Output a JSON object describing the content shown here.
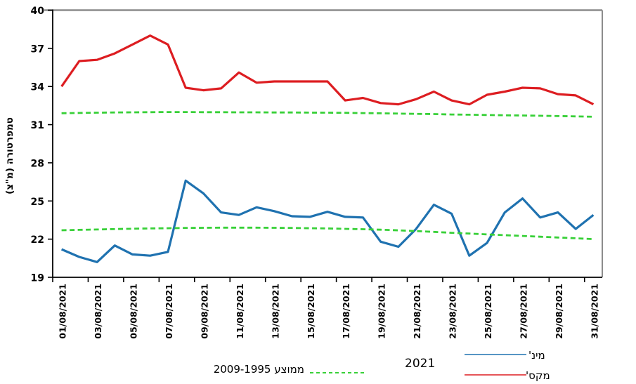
{
  "chart_data": {
    "type": "line",
    "title": "",
    "xlabel": "",
    "ylabel": "טמפרטורה (מ\"צ)",
    "ylim": [
      19,
      40
    ],
    "y_ticks": [
      19,
      22,
      25,
      28,
      31,
      34,
      37,
      40
    ],
    "n_points": 31,
    "grid": false,
    "x_tick_labels": [
      "01/08/2021",
      "03/08/2021",
      "05/08/2021",
      "07/08/2021",
      "09/08/2021",
      "11/08/2021",
      "13/08/2021",
      "15/08/2021",
      "17/08/2021",
      "19/08/2021",
      "21/08/2021",
      "23/08/2021",
      "25/08/2021",
      "27/08/2021",
      "29/08/2021",
      "31/08/2021"
    ],
    "series": [
      {
        "id": "max-2021",
        "name": "מקס' 2021",
        "color": "#dd1d21",
        "style": "solid",
        "values": [
          34.0,
          36.0,
          36.1,
          36.6,
          37.3,
          38.0,
          37.3,
          33.9,
          33.7,
          33.85,
          35.1,
          34.3,
          34.4,
          34.4,
          34.4,
          34.4,
          32.9,
          33.1,
          32.7,
          32.6,
          33.0,
          33.6,
          32.9,
          32.6,
          33.35,
          33.6,
          33.9,
          33.85,
          33.4,
          33.3,
          32.6
        ]
      },
      {
        "id": "min-2021",
        "name": "מינ' 2021",
        "color": "#1f72b0",
        "style": "solid",
        "values": [
          21.2,
          20.6,
          20.2,
          21.5,
          20.8,
          20.7,
          21.0,
          26.6,
          25.6,
          24.1,
          23.9,
          24.5,
          24.2,
          23.8,
          23.75,
          24.15,
          23.75,
          23.7,
          21.8,
          21.4,
          22.8,
          24.7,
          24.0,
          20.7,
          21.7,
          24.1,
          25.2,
          23.7,
          24.1,
          22.8,
          23.9
        ]
      },
      {
        "id": "avg-max-1995-2009",
        "name": "ממוצע מקס' 1995-2009",
        "color": "#38d038",
        "style": "dashed",
        "values": [
          31.9,
          31.92,
          31.94,
          31.96,
          31.97,
          31.98,
          31.99,
          31.99,
          31.98,
          31.98,
          31.97,
          31.97,
          31.96,
          31.96,
          31.95,
          31.94,
          31.93,
          31.91,
          31.89,
          31.87,
          31.85,
          31.83,
          31.8,
          31.78,
          31.76,
          31.74,
          31.72,
          31.7,
          31.68,
          31.65,
          31.62
        ]
      },
      {
        "id": "avg-min-1995-2009",
        "name": "ממוצע מינ' 1995-2009",
        "color": "#38d038",
        "style": "dashed",
        "values": [
          22.7,
          22.73,
          22.76,
          22.79,
          22.82,
          22.84,
          22.86,
          22.88,
          22.89,
          22.9,
          22.9,
          22.9,
          22.89,
          22.88,
          22.86,
          22.84,
          22.81,
          22.78,
          22.74,
          22.69,
          22.63,
          22.57,
          22.5,
          22.44,
          22.37,
          22.31,
          22.25,
          22.19,
          22.13,
          22.07,
          22.0
        ]
      }
    ],
    "legend": {
      "position": "bottom",
      "avg_label": "2009-1995 ממוצע",
      "year_label": "2021",
      "min_label": "מינ'",
      "max_label": "מקס'"
    },
    "frame_color": "#8c8c8c",
    "axis_color": "#000000"
  }
}
